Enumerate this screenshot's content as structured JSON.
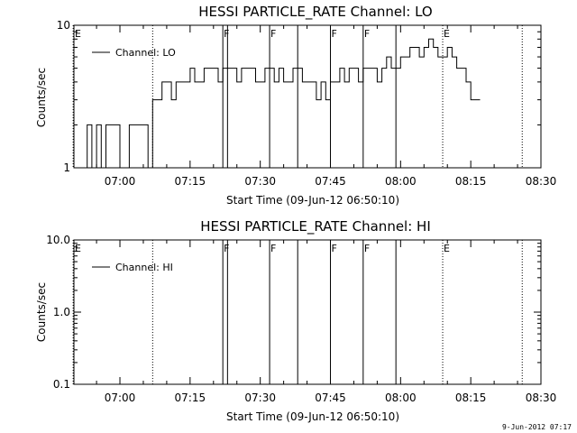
{
  "chart_data": [
    {
      "type": "line",
      "title": "HESSI PARTICLE_RATE Channel: LO",
      "xlabel": "Start Time (09-Jun-12 06:50:10)",
      "ylabel": "Counts/sec",
      "x_tick_labels": [
        "07:00",
        "07:15",
        "07:30",
        "07:45",
        "08:00",
        "08:15",
        "08:30"
      ],
      "y_scale": "log",
      "ylim": [
        1,
        10
      ],
      "y_tick_labels": [
        "1",
        "10"
      ],
      "legend": {
        "entries": [
          "Channel: LO"
        ],
        "placement": "top-left"
      },
      "series": [
        {
          "name": "Channel: LO",
          "x_minutes": [
            52,
            53,
            54,
            55,
            56,
            57,
            58,
            59,
            60,
            61,
            62,
            63,
            64,
            65,
            66,
            67,
            68,
            69,
            70,
            71,
            72,
            73,
            74,
            75,
            76,
            77,
            78,
            79,
            80,
            81,
            82,
            83,
            84,
            85,
            86,
            87,
            88,
            89,
            90,
            91,
            92,
            93,
            94,
            95,
            96,
            97,
            98,
            99,
            100,
            101,
            102,
            103,
            104,
            105,
            106,
            107,
            108,
            109,
            110,
            111,
            112,
            113,
            114,
            115,
            116,
            117,
            118,
            119,
            120,
            121,
            122,
            123,
            124,
            125,
            126,
            127,
            128,
            129,
            130,
            131,
            132,
            133,
            134,
            135,
            136
          ],
          "values": [
            1,
            2,
            1,
            2,
            1,
            2,
            2,
            2,
            1,
            1,
            2,
            2,
            2,
            2,
            1,
            3,
            3,
            4,
            4,
            3,
            4,
            4,
            4,
            5,
            4,
            4,
            5,
            5,
            5,
            4,
            5,
            5,
            5,
            4,
            5,
            5,
            5,
            4,
            4,
            5,
            5,
            4,
            5,
            4,
            4,
            5,
            5,
            4,
            4,
            4,
            3,
            4,
            3,
            4,
            4,
            5,
            4,
            5,
            5,
            4,
            5,
            5,
            5,
            4,
            5,
            6,
            5,
            5,
            6,
            6,
            7,
            7,
            6,
            7,
            8,
            7,
            6,
            6,
            7,
            6,
            5,
            5,
            4,
            3,
            3
          ]
        }
      ]
    },
    {
      "type": "line",
      "title": "HESSI PARTICLE_RATE Channel: HI",
      "xlabel": "Start Time (09-Jun-12 06:50:10)",
      "ylabel": "Counts/sec",
      "x_tick_labels": [
        "07:00",
        "07:15",
        "07:30",
        "07:45",
        "08:00",
        "08:15",
        "08:30"
      ],
      "y_scale": "log",
      "ylim": [
        0.1,
        10.0
      ],
      "y_tick_labels": [
        "0.1",
        "1.0",
        "10.0"
      ],
      "legend": {
        "entries": [
          "Channel: HI"
        ],
        "placement": "top-left"
      },
      "series": [
        {
          "name": "Channel: HI",
          "x_minutes": [],
          "values": []
        }
      ]
    }
  ],
  "x_axis": {
    "start_minute_of_day": 410.1667,
    "end_minute_of_day": 510,
    "tick_minutes_of_day": [
      420,
      435,
      450,
      465,
      480,
      495,
      510
    ]
  },
  "markers": [
    {
      "label": "E",
      "time": "06:50",
      "style": "dotted",
      "label_at_line": false
    },
    {
      "label": "",
      "time": "07:07",
      "style": "dotted",
      "label_at_line": false
    },
    {
      "label": "F",
      "time": "07:22",
      "style": "solid",
      "label_at_line": true
    },
    {
      "label": "",
      "time": "07:23",
      "style": "solid",
      "label_at_line": false
    },
    {
      "label": "F",
      "time": "07:32",
      "style": "solid",
      "label_at_line": true
    },
    {
      "label": "",
      "time": "07:38",
      "style": "solid",
      "label_at_line": false
    },
    {
      "label": "F",
      "time": "07:45",
      "style": "solid",
      "label_at_line": true
    },
    {
      "label": "F",
      "time": "07:52",
      "style": "solid",
      "label_at_line": true
    },
    {
      "label": "",
      "time": "07:59",
      "style": "solid",
      "label_at_line": false
    },
    {
      "label": "E",
      "time": "08:09",
      "style": "dotted",
      "label_at_line": true
    },
    {
      "label": "",
      "time": "08:26",
      "style": "dotted",
      "label_at_line": false
    }
  ],
  "footer": {
    "timestamp": "9-Jun-2012 07:17"
  }
}
